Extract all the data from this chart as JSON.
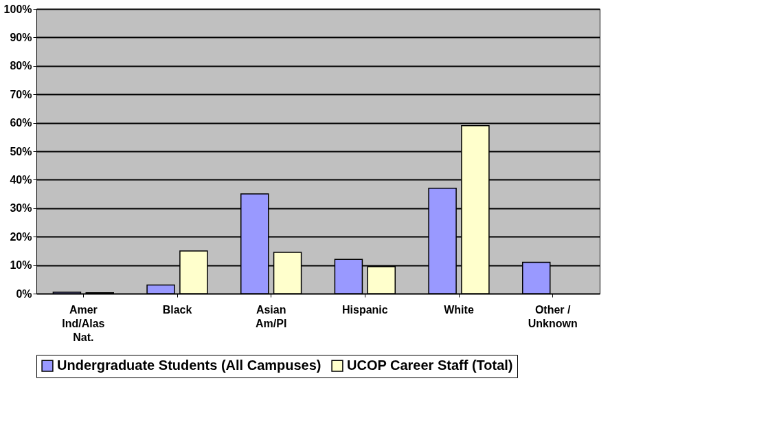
{
  "chart_data": {
    "type": "bar",
    "categories": [
      "Amer Ind/Alas Nat.",
      "Black",
      "Asian Am/PI",
      "Hispanic",
      "White",
      "Other / Unknown"
    ],
    "series": [
      {
        "name": "Undergraduate Students (All Campuses)",
        "color": "#9999ff",
        "values": [
          0.5,
          3,
          35,
          12,
          37,
          11
        ]
      },
      {
        "name": "UCOP Career Staff (Total)",
        "color": "#ffffcc",
        "values": [
          0.3,
          15,
          14.5,
          9.5,
          59,
          null
        ]
      }
    ],
    "ylim": [
      0,
      100
    ],
    "yticks": [
      {
        "value": 0,
        "label": "0%"
      },
      {
        "value": 10,
        "label": "10%"
      },
      {
        "value": 20,
        "label": "20%"
      },
      {
        "value": 30,
        "label": "30%"
      },
      {
        "value": 40,
        "label": "40%"
      },
      {
        "value": 50,
        "label": "50%"
      },
      {
        "value": 60,
        "label": "60%"
      },
      {
        "value": 70,
        "label": "70%"
      },
      {
        "value": 80,
        "label": "80%"
      },
      {
        "value": 90,
        "label": "90%"
      },
      {
        "value": 100,
        "label": "100%"
      }
    ],
    "grid": "y",
    "legend": "bottom"
  }
}
